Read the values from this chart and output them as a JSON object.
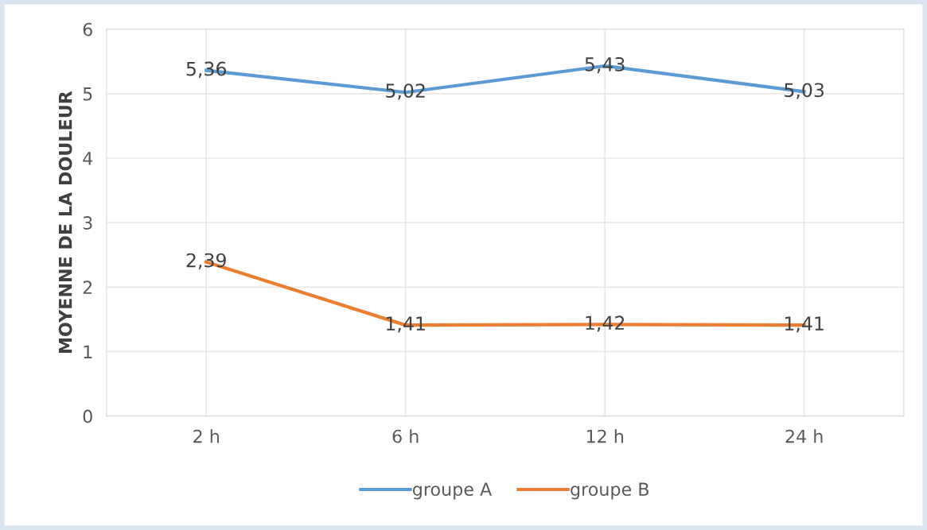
{
  "chart_data": {
    "type": "line",
    "ylabel": "MOYENNE DE LA DOULEUR",
    "categories": [
      "2 h",
      "6 h",
      "12 h",
      "24 h"
    ],
    "series": [
      {
        "name": "groupe A",
        "color": "#5b9bd5",
        "values": [
          5.36,
          5.02,
          5.43,
          5.03
        ],
        "value_labels": [
          "5,36",
          "5,02",
          "5,43",
          "5,03"
        ]
      },
      {
        "name": "groupe B",
        "color": "#ed7d31",
        "values": [
          2.39,
          1.41,
          1.42,
          1.41
        ],
        "value_labels": [
          "2,39",
          "1,41",
          "1,42",
          "1,41"
        ]
      }
    ],
    "ylim": [
      0,
      6
    ],
    "yticks": [
      0,
      1,
      2,
      3,
      4,
      5,
      6
    ],
    "grid": true,
    "legend": "bottom",
    "marker": "none",
    "line_style": "solid"
  }
}
